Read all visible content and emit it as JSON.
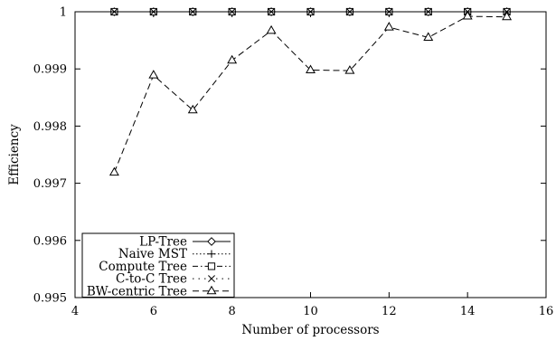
{
  "chart_data": {
    "type": "line",
    "title": "",
    "xlabel": "Number of processors",
    "ylabel": "Efficiency",
    "xlim": [
      4,
      16
    ],
    "ylim": [
      0.995,
      1
    ],
    "xticks": [
      4,
      6,
      8,
      10,
      12,
      14,
      16
    ],
    "xtick_labels": [
      "4",
      "6",
      "8",
      "10",
      "12",
      "14",
      "16"
    ],
    "yticks": [
      0.995,
      0.996,
      0.997,
      0.998,
      0.999,
      1
    ],
    "ytick_labels": [
      "0.995",
      "0.996",
      "0.997",
      "0.998",
      "0.999",
      "1"
    ],
    "grid": false,
    "legend_position": "bottom-left",
    "x": [
      5,
      6,
      7,
      8,
      9,
      10,
      11,
      12,
      13,
      14,
      15
    ],
    "series": [
      {
        "name": "LP-Tree",
        "marker": "diamond-icon",
        "dash": "solid",
        "values": [
          1,
          1,
          1,
          1,
          1,
          1,
          1,
          1,
          1,
          1,
          1
        ]
      },
      {
        "name": "Naive MST",
        "marker": "plus-icon",
        "dash": "dotted",
        "values": [
          1,
          1,
          1,
          1,
          1,
          1,
          1,
          1,
          1,
          1,
          1
        ]
      },
      {
        "name": "Compute Tree",
        "marker": "square-icon",
        "dash": "dashdot",
        "values": [
          1,
          1,
          1,
          1,
          1,
          1,
          1,
          1,
          1,
          1,
          1
        ]
      },
      {
        "name": "C-to-C Tree",
        "marker": "cross-icon",
        "dash": "sparse-dot",
        "values": [
          1,
          1,
          1,
          1,
          1,
          1,
          1,
          1,
          1,
          1,
          1
        ]
      },
      {
        "name": "BW-centric Tree",
        "marker": "triangle-icon",
        "dash": "dashed",
        "values": [
          0.99719,
          0.99889,
          0.99828,
          0.99915,
          0.99967,
          0.99898,
          0.99897,
          0.99973,
          0.99955,
          0.99992,
          0.99991
        ]
      }
    ]
  }
}
